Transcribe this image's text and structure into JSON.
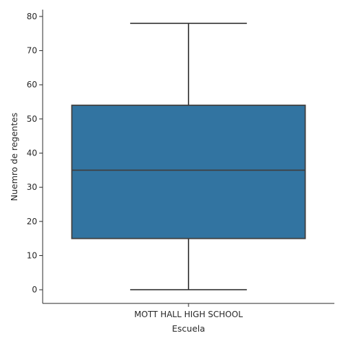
{
  "chart_data": {
    "type": "box",
    "title": "",
    "xlabel": "Escuela",
    "ylabel": "Nuemro de regentes",
    "categories": [
      "MOTT HALL HIGH SCHOOL"
    ],
    "boxes": [
      {
        "category": "MOTT HALL HIGH SCHOOL",
        "whisker_low": 0,
        "q1": 15,
        "median": 35,
        "q3": 54,
        "whisker_high": 78
      }
    ],
    "ylim": [
      -4,
      82
    ],
    "yticks": [
      0,
      10,
      20,
      30,
      40,
      50,
      60,
      70,
      80
    ],
    "grid": false,
    "box_color": "#3274a1",
    "line_color": "#3f3f3f"
  }
}
